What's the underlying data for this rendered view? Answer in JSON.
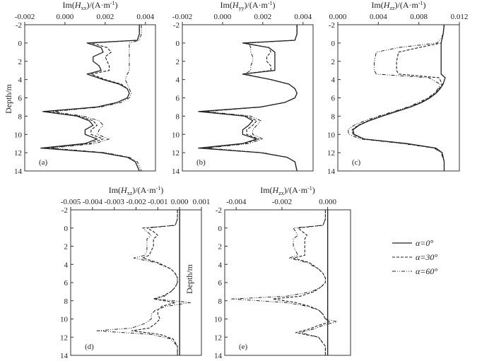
{
  "figure": {
    "ylabel": "Depth/m",
    "legend": [
      {
        "label": "α=0°",
        "dash": "solid"
      },
      {
        "label": "α=30°",
        "dash": "dashed"
      },
      {
        "label": "α=60°",
        "dash": "dashdot"
      }
    ]
  },
  "chart_data": [
    {
      "type": "line",
      "panel": "(a)",
      "title": "Im(H_xx)/(A·m⁻¹)",
      "title_main": "Im(",
      "title_var": "H",
      "title_sub": "xx",
      "title_rest": ")/(A·m",
      "title_exp": "-1",
      "title_end": ")",
      "xlim": [
        -0.002,
        0.0045
      ],
      "xticks": [
        "-0.002",
        "0.000",
        "0.002",
        "0.004"
      ],
      "xtick_values": [
        -0.002,
        0.0,
        0.002,
        0.004
      ],
      "ylim": [
        -2,
        14
      ],
      "yticks": [
        "-2",
        "0",
        "2",
        "4",
        "6",
        "8",
        "10",
        "12",
        "14"
      ],
      "ytick_values": [
        -2,
        0,
        2,
        4,
        6,
        8,
        10,
        12,
        14
      ],
      "y": [
        -2,
        -1,
        -0.3,
        0,
        0.5,
        1,
        1.5,
        2,
        2.5,
        3,
        3.4,
        4,
        4.5,
        5,
        5.5,
        6,
        6.5,
        7,
        7.5,
        8,
        8.5,
        9,
        9.5,
        10,
        10.5,
        11,
        11.5,
        12,
        12.5,
        13,
        14
      ],
      "series": [
        {
          "name": "α=0°",
          "values": [
            0.0037,
            0.0037,
            0.0036,
            0.0011,
            0.0018,
            0.0019,
            0.0014,
            0.0014,
            0.0017,
            0.0018,
            0.0011,
            0.0019,
            0.0027,
            0.0031,
            0.0032,
            0.0031,
            0.0026,
            0.0016,
            -0.0011,
            0.0006,
            0.0012,
            0.0014,
            0.001,
            0.001,
            0.0016,
            0.001,
            -0.0012,
            0.0018,
            0.0031,
            0.0035,
            0.0037
          ]
        },
        {
          "name": "α=30°",
          "values": [
            0.0037,
            0.0037,
            0.0036,
            0.0013,
            0.0021,
            0.0023,
            0.002,
            0.0021,
            0.0022,
            0.0022,
            0.0013,
            0.002,
            0.0028,
            0.0031,
            0.0032,
            0.0031,
            0.0026,
            0.0016,
            -0.0009,
            0.0007,
            0.0014,
            0.0016,
            0.0013,
            0.0013,
            0.0019,
            0.0012,
            -0.001,
            0.0019,
            0.0031,
            0.0035,
            0.0037
          ]
        },
        {
          "name": "α=60°",
          "values": [
            0.0038,
            0.0038,
            0.0037,
            0.0032,
            0.0032,
            0.0032,
            0.0032,
            0.0032,
            0.0032,
            0.0032,
            0.0031,
            0.003,
            0.0031,
            0.0032,
            0.0033,
            0.0032,
            0.0028,
            0.0018,
            -0.0006,
            0.0009,
            0.0017,
            0.0019,
            0.0017,
            0.0016,
            0.0022,
            0.0015,
            -0.0007,
            0.002,
            0.0032,
            0.0036,
            0.0038
          ]
        }
      ],
      "zero_line": false
    },
    {
      "type": "line",
      "panel": "(b)",
      "title": "Im(H_yy)/(A·m⁻¹)",
      "title_main": "Im(",
      "title_var": "H",
      "title_sub": "yy",
      "title_rest": ")/(A·m",
      "title_exp": "-1",
      "title_end": ")",
      "xlim": [
        -0.002,
        0.0045
      ],
      "xticks": [
        "-0.002",
        "0.000",
        "0.002",
        "0.004"
      ],
      "xtick_values": [
        -0.002,
        0.0,
        0.002,
        0.004
      ],
      "ylim": [
        -2,
        14
      ],
      "yticks": [
        "-2",
        "0",
        "2",
        "4",
        "6",
        "8",
        "10",
        "12",
        "14"
      ],
      "ytick_values": [
        -2,
        0,
        2,
        4,
        6,
        8,
        10,
        12,
        14
      ],
      "y": [
        -2,
        -1,
        -0.3,
        0,
        0.5,
        1,
        1.5,
        2,
        2.5,
        3,
        3.4,
        4,
        4.5,
        5,
        5.5,
        6,
        6.5,
        7,
        7.5,
        8,
        8.5,
        9,
        9.5,
        10,
        10.5,
        11,
        11.5,
        12,
        12.5,
        13,
        14
      ],
      "series": [
        {
          "name": "α=0°",
          "values": [
            0.0037,
            0.0037,
            0.0036,
            0.001,
            0.0023,
            0.0026,
            0.0026,
            0.0026,
            0.0026,
            0.0026,
            0.001,
            0.0024,
            0.0033,
            0.0036,
            0.0037,
            0.0036,
            0.0031,
            0.0019,
            -0.0012,
            0.0011,
            0.0015,
            0.0013,
            0.001,
            0.001,
            0.0017,
            0.001,
            -0.0012,
            0.0019,
            0.0032,
            0.0036,
            0.0037
          ]
        },
        {
          "name": "α=30°",
          "values": [
            0.0037,
            0.0037,
            0.0036,
            0.0011,
            0.0023,
            0.0024,
            0.0022,
            0.0022,
            0.0024,
            0.0024,
            0.001,
            0.0024,
            0.0033,
            0.0036,
            0.0037,
            0.0036,
            0.0031,
            0.0019,
            -0.001,
            0.0012,
            0.0017,
            0.0015,
            0.0012,
            0.0012,
            0.0018,
            0.0011,
            -0.001,
            0.0019,
            0.0032,
            0.0036,
            0.0037
          ]
        },
        {
          "name": "α=60°",
          "values": [
            0.0037,
            0.0037,
            0.0036,
            0.0013,
            0.0014,
            0.0014,
            0.0015,
            0.0015,
            0.0014,
            0.0014,
            0.0011,
            0.0024,
            0.0033,
            0.0036,
            0.0037,
            0.0036,
            0.0031,
            0.0019,
            -0.0008,
            0.0014,
            0.0019,
            0.0017,
            0.0015,
            0.0015,
            0.002,
            0.0013,
            -0.0008,
            0.002,
            0.0032,
            0.0036,
            0.0037
          ]
        }
      ],
      "zero_line": false
    },
    {
      "type": "line",
      "panel": "(c)",
      "title": "Im(H_zz)/(A·m⁻¹)",
      "title_main": "Im(",
      "title_var": "H",
      "title_sub": "zz",
      "title_rest": ")/(A·m",
      "title_exp": "-1",
      "title_end": ")",
      "xlim": [
        0.0,
        0.012
      ],
      "xticks": [
        "0.000",
        "0.004",
        "0.008",
        "0.012"
      ],
      "xtick_values": [
        0.0,
        0.004,
        0.008,
        0.012
      ],
      "ylim": [
        -2,
        14
      ],
      "yticks": [
        "-2",
        "0",
        "2",
        "4",
        "6",
        "8",
        "10",
        "12",
        "14"
      ],
      "ytick_values": [
        -2,
        0,
        2,
        4,
        6,
        8,
        10,
        12,
        14
      ],
      "y": [
        -2,
        -1,
        -0.5,
        0,
        0.5,
        1,
        2,
        3,
        3.4,
        3.8,
        4.5,
        5,
        5.5,
        6,
        6.5,
        7,
        7.5,
        8,
        8.5,
        9,
        9.5,
        10,
        10.5,
        11,
        11.5,
        12,
        13,
        14
      ],
      "series": [
        {
          "name": "α=0°",
          "values": [
            0.0105,
            0.0104,
            0.0103,
            0.0102,
            0.0102,
            0.0102,
            0.0102,
            0.0102,
            0.0102,
            0.0106,
            0.0104,
            0.0101,
            0.0097,
            0.0091,
            0.0083,
            0.0072,
            0.0058,
            0.0044,
            0.0031,
            0.0021,
            0.0015,
            0.0016,
            0.0026,
            0.0068,
            0.0097,
            0.0103,
            0.0105,
            0.0105
          ]
        },
        {
          "name": "α=30°",
          "values": [
            0.0105,
            0.0104,
            0.0103,
            0.0102,
            0.008,
            0.006,
            0.0058,
            0.0058,
            0.006,
            0.01,
            0.0103,
            0.01,
            0.0096,
            0.009,
            0.0082,
            0.0071,
            0.0057,
            0.0043,
            0.003,
            0.002,
            0.0014,
            0.0015,
            0.0025,
            0.0067,
            0.0096,
            0.0103,
            0.0105,
            0.0105
          ]
        },
        {
          "name": "α=60°",
          "values": [
            0.0105,
            0.0104,
            0.0102,
            0.0098,
            0.006,
            0.0038,
            0.0036,
            0.0036,
            0.0038,
            0.009,
            0.0101,
            0.0099,
            0.0095,
            0.0089,
            0.008,
            0.0069,
            0.0055,
            0.004,
            0.0027,
            0.0016,
            0.001,
            0.0011,
            0.0022,
            0.0064,
            0.0095,
            0.0102,
            0.0105,
            0.0105
          ]
        }
      ],
      "zero_line": false
    },
    {
      "type": "line",
      "panel": "(d)",
      "title": "Im(H_xz)/(A·m⁻¹)",
      "title_main": "Im(",
      "title_var": "H",
      "title_sub": "xz",
      "title_rest": ")/(A·m",
      "title_exp": "-1",
      "title_end": ")",
      "xlim": [
        -0.005,
        0.001
      ],
      "xticks": [
        "-0.005",
        "-0.004",
        "-0.003",
        "-0.002",
        "-0.001",
        "0.000",
        "0.001"
      ],
      "xtick_values": [
        -0.005,
        -0.004,
        -0.003,
        -0.002,
        -0.001,
        0.0,
        0.001
      ],
      "ylim": [
        -2,
        14
      ],
      "yticks": [
        "-2",
        "0",
        "2",
        "4",
        "6",
        "8",
        "10",
        "12",
        "14"
      ],
      "ytick_values": [
        -2,
        0,
        2,
        4,
        6,
        8,
        10,
        12,
        14
      ],
      "y": [
        -2,
        -1,
        -0.3,
        0,
        0.4,
        0.8,
        1.2,
        2,
        2.5,
        3,
        3.3,
        3.8,
        4.5,
        5,
        5.5,
        6,
        6.5,
        7,
        7.5,
        7.8,
        8.2,
        8.6,
        9,
        9.5,
        10,
        10.5,
        11,
        11.3,
        11.7,
        12.2,
        13,
        14
      ],
      "series": [
        {
          "name": "α=0°",
          "values": [
            0.0,
            0.0,
            0.0,
            0.0,
            0.0,
            0.0,
            0.0,
            0.0,
            0.0,
            0.0,
            0.0,
            0.0,
            0.0,
            0.0,
            0.0,
            0.0,
            0.0,
            0.0,
            0.0,
            0.0,
            0.0,
            0.0,
            0.0,
            0.0,
            0.0,
            0.0,
            0.0,
            0.0,
            0.0,
            0.0,
            0.0,
            0.0
          ]
        },
        {
          "name": "α=30°",
          "values": [
            -0.0001,
            -0.0001,
            -0.0002,
            -0.0015,
            -0.0012,
            -0.001,
            -0.0012,
            -0.0012,
            -0.0013,
            -0.0014,
            -0.0017,
            -0.001,
            -0.0004,
            -0.0002,
            -0.0001,
            -0.0001,
            -0.0002,
            -0.0004,
            -0.0008,
            -0.0012,
            -0.0002,
            -0.0008,
            -0.001,
            -0.001,
            -0.0009,
            -0.0011,
            -0.0014,
            -0.0022,
            -0.0009,
            -0.0003,
            -0.0001,
            -0.0001
          ]
        },
        {
          "name": "α=60°",
          "values": [
            -0.0001,
            -0.0001,
            -0.0002,
            -0.0017,
            -0.0015,
            -0.0013,
            -0.0015,
            -0.0015,
            -0.0015,
            -0.0016,
            -0.0021,
            -0.0011,
            -0.0004,
            -0.0002,
            -0.0001,
            -0.0001,
            -0.0002,
            -0.0004,
            -0.0007,
            -0.0011,
            0.0005,
            -0.0006,
            -0.0011,
            -0.0013,
            -0.0013,
            -0.0016,
            -0.0022,
            -0.0038,
            -0.0013,
            -0.0004,
            -0.0001,
            -0.0001
          ]
        }
      ],
      "zero_line": true
    },
    {
      "type": "line",
      "panel": "(e)",
      "title": "Im(H_zx)/(A·m⁻¹)",
      "title_main": "Im(",
      "title_var": "H",
      "title_sub": "zx",
      "title_rest": ")/(A·m",
      "title_exp": "-1",
      "title_end": ")",
      "xlim": [
        -0.0045,
        0.001
      ],
      "xticks": [
        "-0.004",
        "-0.002",
        "0.000"
      ],
      "xtick_values": [
        -0.004,
        -0.002,
        0.0
      ],
      "ylim": [
        -2,
        14
      ],
      "yticks": [
        "-2",
        "0",
        "2",
        "4",
        "6",
        "8",
        "10",
        "12",
        "14"
      ],
      "ytick_values": [
        -2,
        0,
        2,
        4,
        6,
        8,
        10,
        12,
        14
      ],
      "y": [
        -2,
        -1,
        -0.3,
        0,
        0.4,
        0.8,
        1.2,
        2,
        2.5,
        3,
        3.3,
        3.8,
        4.5,
        5,
        5.5,
        6,
        6.5,
        7,
        7.5,
        7.8,
        8.2,
        8.6,
        9,
        9.5,
        10,
        10.3,
        10.7,
        11.1,
        11.5,
        12,
        13,
        14
      ],
      "series": [
        {
          "name": "α=0°",
          "values": [
            0.0,
            0.0,
            0.0,
            0.0,
            0.0,
            0.0,
            0.0,
            0.0,
            0.0,
            0.0,
            0.0,
            0.0,
            0.0,
            0.0,
            0.0,
            0.0,
            0.0,
            0.0,
            0.0,
            0.0,
            0.0,
            0.0,
            0.0,
            0.0,
            0.0,
            0.0,
            0.0,
            0.0,
            0.0,
            0.0,
            0.0,
            0.0
          ]
        },
        {
          "name": "α=30°",
          "values": [
            -0.0001,
            -0.0001,
            -0.0002,
            -0.0013,
            -0.0011,
            -0.0009,
            -0.001,
            -0.001,
            -0.001,
            -0.001,
            -0.0015,
            -0.0008,
            -0.0004,
            -0.0002,
            -0.0001,
            -0.0001,
            -0.0003,
            -0.0006,
            -0.0012,
            -0.0024,
            -0.0014,
            -0.0008,
            -0.0004,
            -0.0002,
            -0.0001,
            0.0001,
            -0.0004,
            -0.0008,
            -0.0014,
            -0.0004,
            -0.0001,
            -0.0001
          ]
        },
        {
          "name": "α=60°",
          "values": [
            -0.0001,
            -0.0001,
            -0.0002,
            -0.0015,
            -0.0014,
            -0.0013,
            -0.0015,
            -0.0015,
            -0.0014,
            -0.0013,
            -0.0017,
            -0.0009,
            -0.0004,
            -0.0002,
            -0.0001,
            -0.0001,
            -0.0003,
            -0.0007,
            -0.0018,
            -0.0042,
            -0.0018,
            -0.0009,
            -0.0004,
            -0.0002,
            -0.0001,
            0.0004,
            -0.0002,
            -0.0006,
            -0.0012,
            -0.0004,
            -0.0001,
            -0.0001
          ]
        }
      ],
      "zero_line": true
    }
  ]
}
